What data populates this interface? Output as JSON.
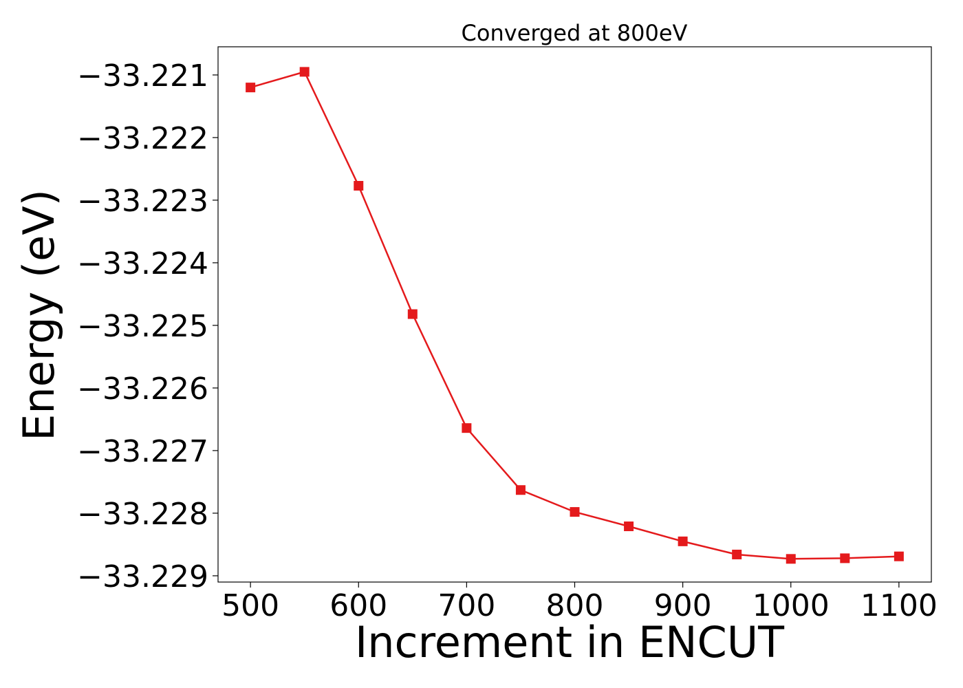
{
  "chart_data": {
    "type": "line",
    "title": "Converged at 800eV",
    "xlabel": "Increment in ENCUT",
    "ylabel": "Energy (eV)",
    "x": [
      500,
      550,
      600,
      650,
      700,
      750,
      800,
      850,
      900,
      950,
      1000,
      1050,
      1100
    ],
    "series": [
      {
        "values": [
          -33.2212,
          -33.22095,
          -33.22277,
          -33.22482,
          -33.22664,
          -33.22763,
          -33.22798,
          -33.22821,
          -33.22845,
          -33.22866,
          -33.22873,
          -33.22872,
          -33.22869
        ]
      }
    ],
    "xticks": [
      500,
      600,
      700,
      800,
      900,
      1000,
      1100
    ],
    "xtick_labels": [
      "500",
      "600",
      "700",
      "800",
      "900",
      "1000",
      "1100"
    ],
    "yticks": [
      -33.221,
      -33.222,
      -33.223,
      -33.224,
      -33.225,
      -33.226,
      -33.227,
      -33.228,
      -33.229
    ],
    "ytick_labels": [
      "−33.221",
      "−33.222",
      "−33.223",
      "−33.224",
      "−33.225",
      "−33.226",
      "−33.227",
      "−33.228",
      "−33.229"
    ],
    "xlim": [
      470,
      1130
    ],
    "ylim": [
      -33.2291,
      -33.22055
    ],
    "grid": false,
    "marker": "square",
    "line_color": "#e41a1c"
  }
}
